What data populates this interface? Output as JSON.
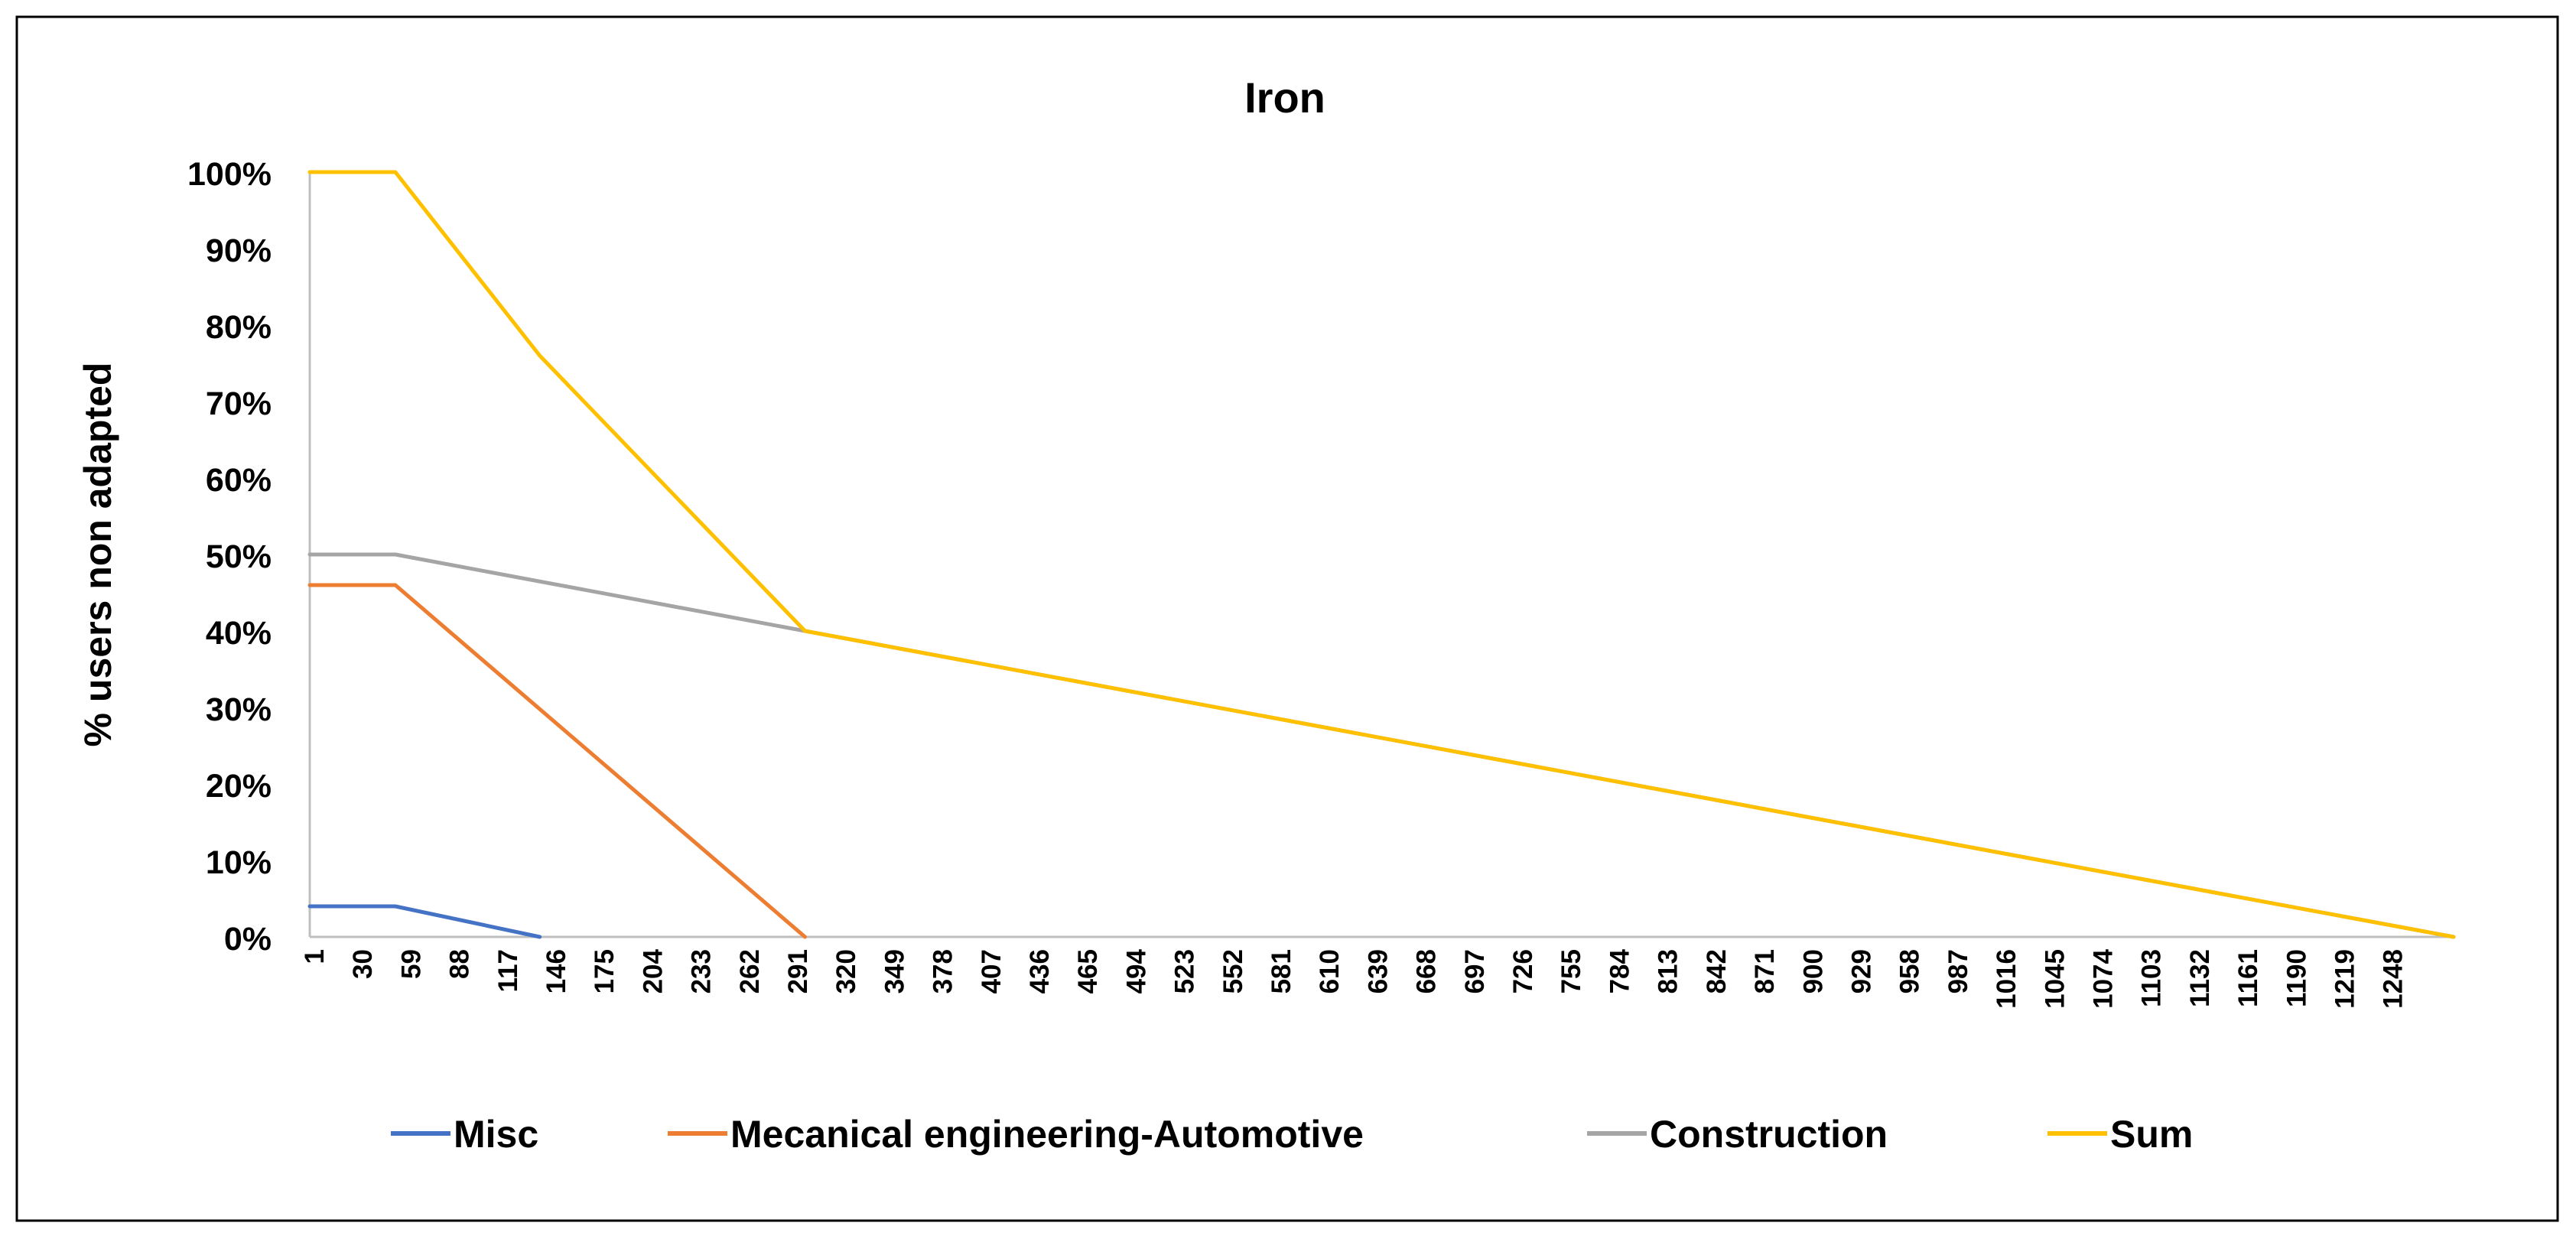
{
  "chart_data": {
    "type": "line",
    "title": "Iron",
    "xlabel": "",
    "ylabel": "% users non adapted",
    "ylim": [
      0,
      1
    ],
    "yticks": [
      0,
      0.1,
      0.2,
      0.3,
      0.4,
      0.5,
      0.6,
      0.7,
      0.8,
      0.9,
      1.0
    ],
    "ytick_labels": [
      "0%",
      "10%",
      "20%",
      "30%",
      "40%",
      "50%",
      "60%",
      "70%",
      "80%",
      "90%",
      "100%"
    ],
    "xlim": [
      1,
      1278
    ],
    "xtick_labels": [
      "1",
      "30",
      "59",
      "88",
      "117",
      "146",
      "175",
      "204",
      "233",
      "262",
      "291",
      "320",
      "349",
      "378",
      "407",
      "436",
      "465",
      "494",
      "523",
      "552",
      "581",
      "610",
      "639",
      "668",
      "697",
      "726",
      "755",
      "784",
      "813",
      "842",
      "871",
      "900",
      "929",
      "958",
      "987",
      "1016",
      "1045",
      "1074",
      "1103",
      "1132",
      "1161",
      "1190",
      "1219",
      "1248"
    ],
    "legend_position": "bottom",
    "grid": false,
    "series": [
      {
        "name": "Misc",
        "color": "#4472C4",
        "points": [
          [
            1,
            0.04
          ],
          [
            52,
            0.04
          ],
          [
            138,
            0.0
          ]
        ]
      },
      {
        "name": "Mecanical engineering-Automotive",
        "color": "#ED7D31",
        "points": [
          [
            1,
            0.46
          ],
          [
            52,
            0.46
          ],
          [
            296,
            0.0
          ]
        ]
      },
      {
        "name": "Construction",
        "color": "#A5A5A5",
        "points": [
          [
            1,
            0.5
          ],
          [
            52,
            0.5
          ],
          [
            296,
            0.4
          ],
          [
            1278,
            0.0
          ]
        ]
      },
      {
        "name": "Sum",
        "color": "#FFC000",
        "points": [
          [
            1,
            1.0
          ],
          [
            52,
            1.0
          ],
          [
            138,
            0.76
          ],
          [
            296,
            0.4
          ],
          [
            1278,
            0.0
          ]
        ]
      }
    ]
  }
}
